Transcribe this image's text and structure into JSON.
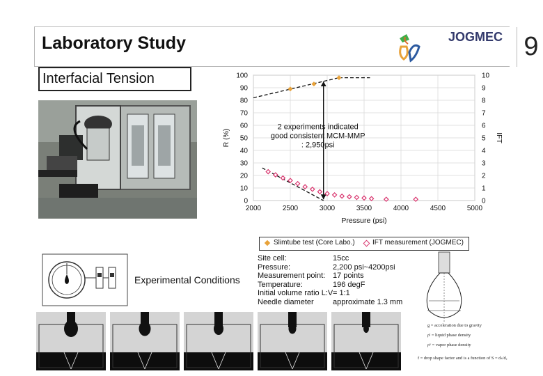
{
  "header": {
    "title": "Laboratory Study",
    "brand": "JOGMEC",
    "slide_number": "9"
  },
  "subtitle": "Interfacial Tension",
  "chart_data": {
    "type": "scatter",
    "xlabel": "Pressure (psi)",
    "ylabel_left": "R (%)",
    "ylabel_right": "IFT",
    "xlim": [
      2000,
      5000
    ],
    "ylim_left": [
      0,
      100
    ],
    "ylim_right": [
      0,
      10
    ],
    "x_ticks": [
      "2000",
      "2500",
      "3000",
      "3500",
      "4000",
      "4500",
      "5000"
    ],
    "y_ticks_left": [
      "0",
      "10",
      "20",
      "30",
      "40",
      "50",
      "60",
      "70",
      "80",
      "90",
      "100"
    ],
    "y_ticks_right": [
      "0",
      "1",
      "2",
      "3",
      "4",
      "5",
      "6",
      "7",
      "8",
      "9",
      "10"
    ],
    "grid": true,
    "series": [
      {
        "name": "Slimtube test (Core Labo.)",
        "axis": "left",
        "color": "#e8a23a",
        "marker": "diamond-filled",
        "x": [
          2500,
          2820,
          3160
        ],
        "y": [
          89,
          93,
          98
        ]
      },
      {
        "name": "IFT measurement (JOGMEC)",
        "axis": "right",
        "color": "#d9366f",
        "marker": "diamond-open",
        "x": [
          2200,
          2300,
          2400,
          2500,
          2600,
          2700,
          2800,
          2900,
          3000,
          3100,
          3200,
          3300,
          3400,
          3500,
          3600,
          3800,
          4200
        ],
        "y": [
          2.3,
          2.05,
          1.8,
          1.6,
          1.35,
          1.1,
          0.9,
          0.7,
          0.55,
          0.45,
          0.35,
          0.3,
          0.25,
          0.2,
          0.15,
          0.1,
          0.1
        ]
      }
    ],
    "annotation": [
      "2 experiments indicated",
      "good consistent MCM-MMP",
      ": 2,950psi"
    ],
    "annotation_x": 2950
  },
  "legend": {
    "slimtube_label": "Slimtube test (Core Labo.)",
    "ift_label": "IFT measurement (JOGMEC)"
  },
  "experimental_conditions_label": "Experimental Conditions",
  "conditions": [
    {
      "key": "Site cell:",
      "value": "15cc"
    },
    {
      "key": "Pressure:",
      "value": "2,200 psi~4200psi"
    },
    {
      "key": "Measurement point:",
      "value": "17 points"
    },
    {
      "key": "Temperature:",
      "value": "196 degF"
    },
    {
      "key": "Initial volume ratio L:V",
      "value": "= 1:1"
    },
    {
      "key": "Needle diameter",
      "value": "approximate 1.3 mm"
    }
  ],
  "diagram_text": [
    "g = acceleration due to gravity",
    "ρˡ = liquid phase density",
    "ρᵛ = vapor phase density",
    "f = drop shape factor and is a function of S = dₛ/dₑ"
  ]
}
